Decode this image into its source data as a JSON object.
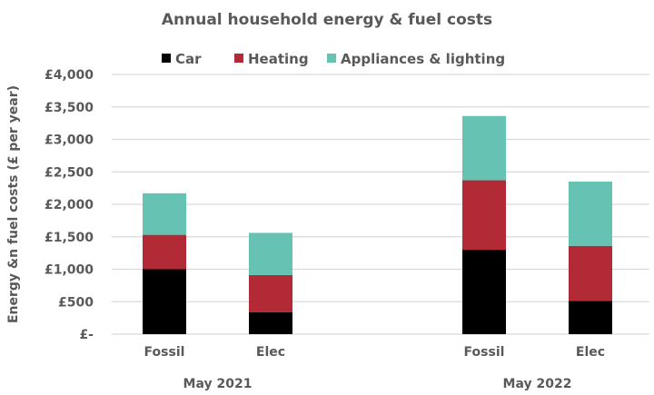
{
  "chart_data": {
    "type": "stacked-bar",
    "title": "Annual household energy & fuel costs",
    "ylabel": "Energy &n fuel costs (£ per year)",
    "xlabel": "",
    "ylim": [
      0,
      4000
    ],
    "yticks": [
      0,
      500,
      1000,
      1500,
      2000,
      2500,
      3000,
      3500,
      4000
    ],
    "ytick_labels": [
      "£-",
      "£500",
      "£1,000",
      "£1,500",
      "£2,000",
      "£2,500",
      "£3,000",
      "£3,500",
      "£4,000"
    ],
    "grid": true,
    "legend": "top",
    "groups": [
      {
        "label": "May 2021",
        "categories": [
          "Fossil",
          "Elec"
        ]
      },
      {
        "label": "May 2022",
        "categories": [
          "Fossil",
          "Elec"
        ]
      }
    ],
    "series": [
      {
        "name": "Car",
        "color": "#000000",
        "values": [
          1000,
          340,
          1300,
          510
        ]
      },
      {
        "name": "Heating",
        "color": "#B22A35",
        "values": [
          530,
          570,
          1070,
          850
        ]
      },
      {
        "name": "Appliances & lighting",
        "color": "#66C2B2",
        "values": [
          640,
          650,
          990,
          990
        ]
      }
    ]
  }
}
